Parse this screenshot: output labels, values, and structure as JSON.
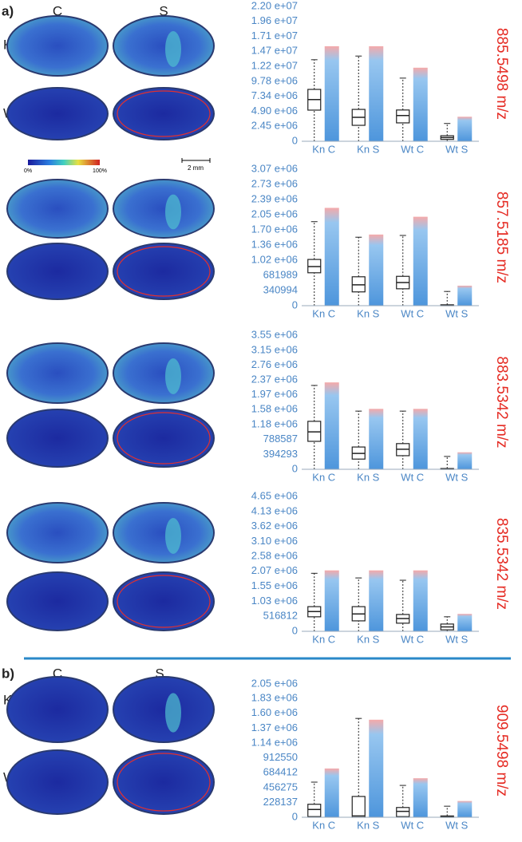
{
  "figure": {
    "panel_a": "a)",
    "panel_b": "b)",
    "col_c": "C",
    "col_s": "S",
    "row_kn": "Kn",
    "row_wt": "Wt",
    "colorbar_min": "0%",
    "colorbar_max": "100%",
    "scale_bar": "2 mm"
  },
  "chart_data": [
    {
      "type": "box",
      "ylabel": "885.5498 m/z",
      "categories": [
        "Kn C",
        "Kn S",
        "Wt C",
        "Wt S"
      ],
      "color": "#4a90d9",
      "whisker_low": [
        0,
        0,
        0,
        0
      ],
      "q1": [
        5080000,
        2600000,
        3000000,
        300000
      ],
      "median": [
        6800000,
        3900000,
        4200000,
        600000
      ],
      "q3": [
        8460000,
        5200000,
        5100000,
        900000
      ],
      "whisker_high": [
        13300000,
        13900000,
        10300000,
        2900000
      ],
      "cloud_max": [
        15500000,
        15500000,
        12000000,
        4000000
      ],
      "ylim": [
        0,
        22000000
      ],
      "yticks": [
        0,
        {
          "value": 2450000,
          "label": "2.45 e+06"
        },
        {
          "value": 4900000,
          "label": "4.90 e+06"
        },
        {
          "value": 7340000,
          "label": "7.34 e+06"
        },
        {
          "value": 9780000,
          "label": "9.78 e+06"
        },
        {
          "value": 12200000,
          "label": "1.22 e+07"
        },
        {
          "value": 14700000,
          "label": "1.47 e+07"
        },
        {
          "value": 17100000,
          "label": "1.71 e+07"
        },
        {
          "value": 19600000,
          "label": "1.96 e+07"
        },
        {
          "value": 22000000,
          "label": "2.20 e+07"
        }
      ]
    },
    {
      "type": "box",
      "ylabel": "857.5185 m/z",
      "categories": [
        "Kn C",
        "Kn S",
        "Wt C",
        "Wt S"
      ],
      "color": "#4a90d9",
      "whisker_low": [
        0,
        0,
        0,
        0
      ],
      "q1": [
        740000,
        310000,
        380000,
        0
      ],
      "median": [
        880000,
        470000,
        520000,
        10000
      ],
      "q3": [
        1040000,
        650000,
        660000,
        20000
      ],
      "whisker_high": [
        1890000,
        1540000,
        1580000,
        320000
      ],
      "cloud_max": [
        2200000,
        1600000,
        2000000,
        450000
      ],
      "ylim": [
        0,
        3070000
      ],
      "yticks": [
        0,
        340994,
        681989,
        {
          "value": 1020000,
          "label": "1.02 e+06"
        },
        {
          "value": 1360000,
          "label": "1.36 e+06"
        },
        {
          "value": 1700000,
          "label": "1.70 e+06"
        },
        {
          "value": 2050000,
          "label": "2.05 e+06"
        },
        {
          "value": 2390000,
          "label": "2.39 e+06"
        },
        {
          "value": 2730000,
          "label": "2.73 e+06"
        },
        {
          "value": 3070000,
          "label": "3.07 e+06"
        }
      ]
    },
    {
      "type": "box",
      "ylabel": "883.5342 m/z",
      "categories": [
        "Kn C",
        "Kn S",
        "Wt C",
        "Wt S"
      ],
      "color": "#4a90d9",
      "whisker_low": [
        0,
        0,
        0,
        0
      ],
      "q1": [
        740000,
        270000,
        360000,
        0
      ],
      "median": [
        990000,
        420000,
        530000,
        10000
      ],
      "q3": [
        1270000,
        590000,
        680000,
        20000
      ],
      "whisker_high": [
        2220000,
        1540000,
        1540000,
        340000
      ],
      "cloud_max": [
        2300000,
        1600000,
        1600000,
        450000
      ],
      "ylim": [
        0,
        3550000
      ],
      "yticks": [
        0,
        394293,
        788587,
        {
          "value": 1180000,
          "label": "1.18 e+06"
        },
        {
          "value": 1580000,
          "label": "1.58 e+06"
        },
        {
          "value": 1970000,
          "label": "1.97 e+06"
        },
        {
          "value": 2370000,
          "label": "2.37 e+06"
        },
        {
          "value": 2760000,
          "label": "2.76 e+06"
        },
        {
          "value": 3150000,
          "label": "3.15 e+06"
        },
        {
          "value": 3550000,
          "label": "3.55 e+06"
        }
      ]
    },
    {
      "type": "box",
      "ylabel": "835.5342 m/z",
      "categories": [
        "Kn C",
        "Kn S",
        "Wt C",
        "Wt S"
      ],
      "color": "#4a90d9",
      "whisker_low": [
        0,
        0,
        0,
        0
      ],
      "q1": [
        500000,
        360000,
        280000,
        50000
      ],
      "median": [
        680000,
        600000,
        440000,
        150000
      ],
      "q3": [
        850000,
        850000,
        580000,
        250000
      ],
      "whisker_high": [
        2000000,
        1840000,
        1760000,
        500000
      ],
      "cloud_max": [
        2100000,
        2100000,
        2100000,
        600000
      ],
      "ylim": [
        0,
        4650000
      ],
      "yticks": [
        0,
        516812,
        {
          "value": 1030000,
          "label": "1.03 e+06"
        },
        {
          "value": 1550000,
          "label": "1.55 e+06"
        },
        {
          "value": 2070000,
          "label": "2.07 e+06"
        },
        {
          "value": 2580000,
          "label": "2.58 e+06"
        },
        {
          "value": 3100000,
          "label": "3.10 e+06"
        },
        {
          "value": 3620000,
          "label": "3.62 e+06"
        },
        {
          "value": 4130000,
          "label": "4.13 e+06"
        },
        {
          "value": 4650000,
          "label": "4.65 e+06"
        }
      ]
    },
    {
      "type": "box",
      "ylabel": "909.5498 m/z",
      "categories": [
        "Kn C",
        "Kn S",
        "Wt C",
        "Wt S"
      ],
      "color": "#4a90d9",
      "whisker_low": [
        0,
        0,
        0,
        0
      ],
      "q1": [
        10000,
        0,
        10000,
        0
      ],
      "median": [
        120000,
        20000,
        90000,
        10000
      ],
      "q3": [
        200000,
        320000,
        150000,
        20000
      ],
      "whisker_high": [
        540000,
        1520000,
        490000,
        170000
      ],
      "cloud_max": [
        750000,
        1500000,
        600000,
        250000
      ],
      "ylim": [
        0,
        2050000
      ],
      "yticks": [
        0,
        228137,
        456275,
        684412,
        912550,
        {
          "value": 1140000,
          "label": "1.14 e+06"
        },
        {
          "value": 1370000,
          "label": "1.37 e+06"
        },
        {
          "value": 1600000,
          "label": "1.60 e+06"
        },
        {
          "value": 1830000,
          "label": "1.83 e+06"
        },
        {
          "value": 2050000,
          "label": "2.05 e+06"
        }
      ]
    }
  ]
}
